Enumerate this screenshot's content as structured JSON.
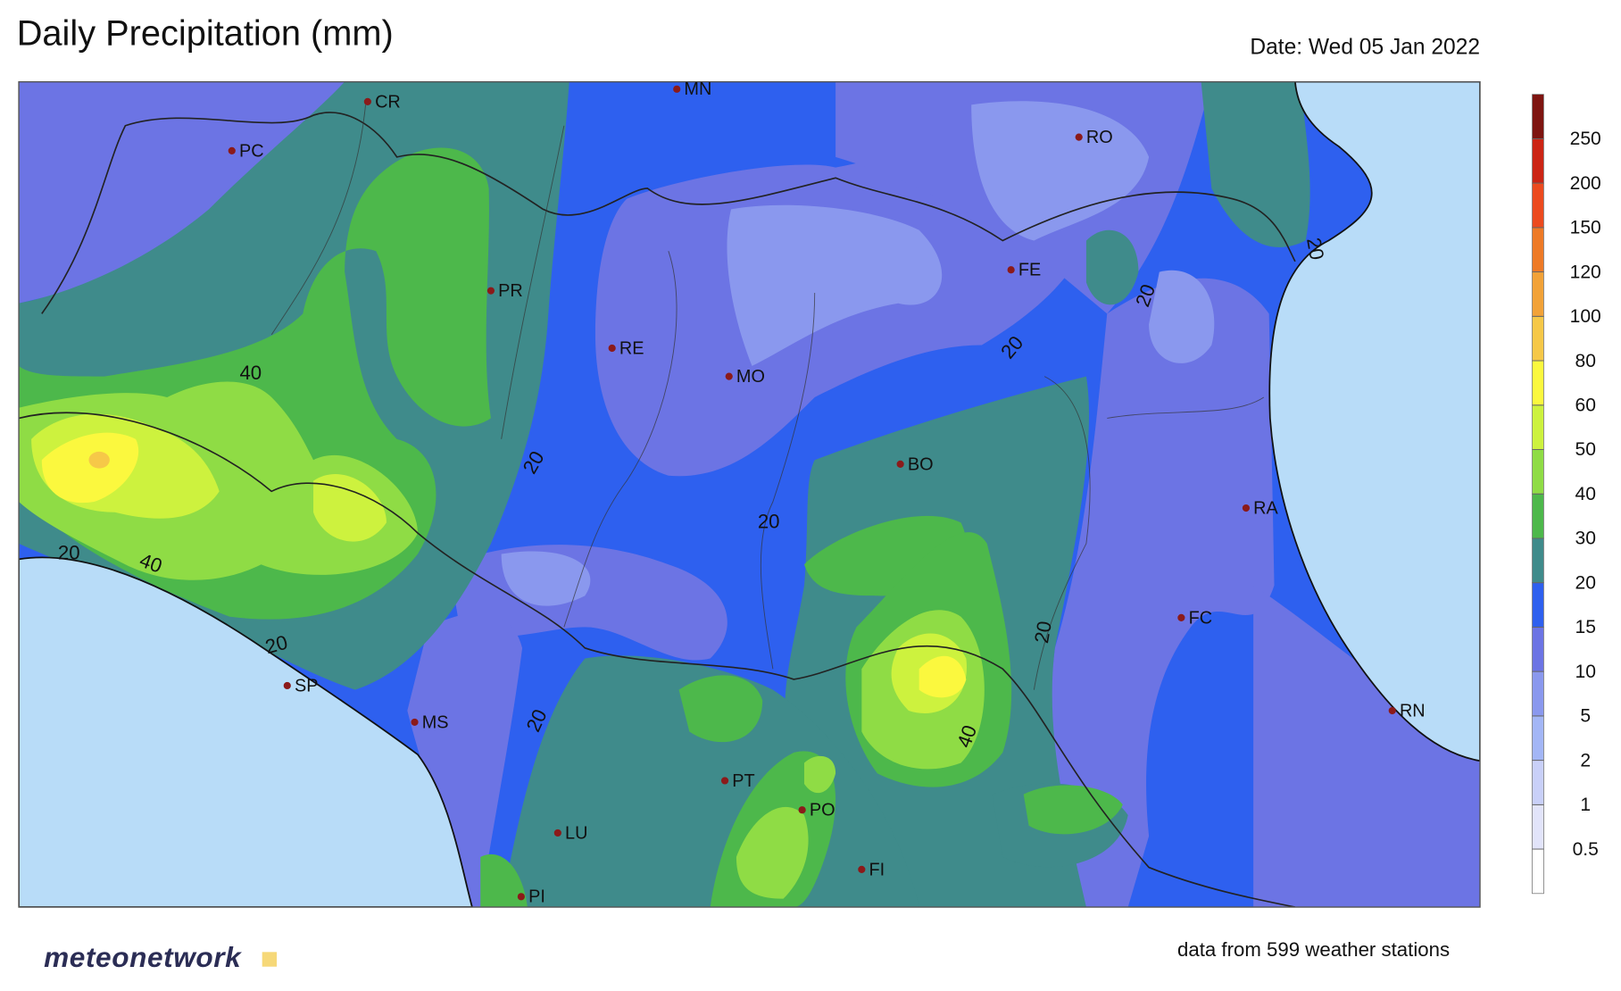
{
  "header": {
    "title": "Daily Precipitation (mm)",
    "date": "Date: Wed 05 Jan 2022"
  },
  "map": {
    "cities": [
      "CR",
      "MN",
      "PC",
      "RO",
      "PR",
      "FE",
      "RE",
      "MO",
      "BO",
      "RA",
      "FC",
      "RN",
      "SP",
      "MS",
      "PT",
      "PO",
      "LU",
      "FI",
      "PI"
    ],
    "contour_labels": [
      "40",
      "20",
      "20",
      "40",
      "20",
      "20",
      "20",
      "40",
      "20",
      "20",
      "20",
      "20"
    ]
  },
  "legend": {
    "levels": [
      0.5,
      1,
      2,
      5,
      10,
      15,
      20,
      30,
      40,
      50,
      60,
      80,
      100,
      120,
      150,
      200,
      250
    ],
    "colors": [
      "#ffffff",
      "#e2e4fa",
      "#c9d0f8",
      "#a3b6f6",
      "#8a98ee",
      "#6c74e4",
      "#2e60ef",
      "#3f8b8b",
      "#4db84b",
      "#8fdc45",
      "#cdf23e",
      "#fbf83e",
      "#f6c848",
      "#f2a238",
      "#ee7a26",
      "#ec4a1e",
      "#cc2414",
      "#7e1410"
    ]
  },
  "footer": {
    "logo": "meteonetwork",
    "note": "data from 599 weather stations"
  }
}
